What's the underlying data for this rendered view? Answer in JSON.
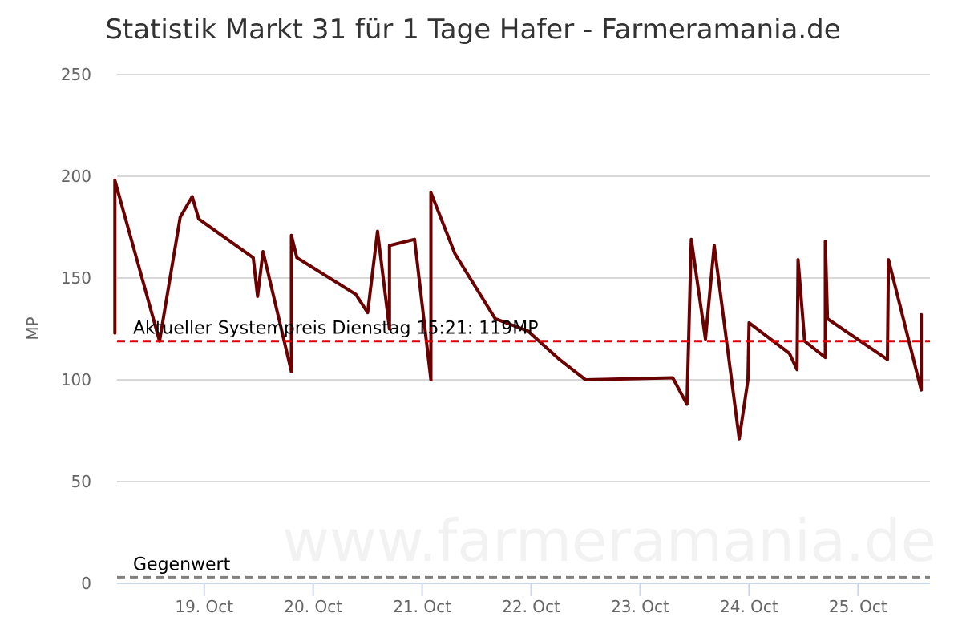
{
  "chart_data": {
    "type": "line",
    "title": "Statistik Markt 31 für 1 Tage Hafer - Farmeramania.de",
    "ylabel": "MP",
    "xlabel": "",
    "ylim": [
      0,
      250
    ],
    "yticks": [
      0,
      50,
      100,
      150,
      200,
      250
    ],
    "xlim": [
      18.2,
      25.66
    ],
    "xticks": [
      {
        "value": 19,
        "label": "19. Oct"
      },
      {
        "value": 20,
        "label": "20. Oct"
      },
      {
        "value": 21,
        "label": "21. Oct"
      },
      {
        "value": 22,
        "label": "22. Oct"
      },
      {
        "value": 23,
        "label": "23. Oct"
      },
      {
        "value": 24,
        "label": "24. Oct"
      },
      {
        "value": 25,
        "label": "25. Oct"
      }
    ],
    "grid": true,
    "line_color": "#6b0000",
    "series": [
      {
        "name": "",
        "points": [
          [
            18.18,
            123
          ],
          [
            18.18,
            198
          ],
          [
            18.59,
            119
          ],
          [
            18.78,
            180
          ],
          [
            18.89,
            190
          ],
          [
            18.95,
            179
          ],
          [
            19.45,
            160
          ],
          [
            19.49,
            141
          ],
          [
            19.54,
            163
          ],
          [
            19.8,
            104
          ],
          [
            19.8,
            171
          ],
          [
            19.85,
            160
          ],
          [
            20.39,
            142
          ],
          [
            20.5,
            133
          ],
          [
            20.59,
            173
          ],
          [
            20.7,
            125
          ],
          [
            20.7,
            166
          ],
          [
            20.93,
            169
          ],
          [
            21.08,
            100
          ],
          [
            21.08,
            192
          ],
          [
            21.3,
            162
          ],
          [
            21.67,
            130
          ],
          [
            21.97,
            124
          ],
          [
            22.26,
            110
          ],
          [
            22.5,
            100
          ],
          [
            23.3,
            101
          ],
          [
            23.43,
            88
          ],
          [
            23.47,
            169
          ],
          [
            23.6,
            120
          ],
          [
            23.68,
            166
          ],
          [
            23.91,
            71
          ],
          [
            23.99,
            100
          ],
          [
            24.0,
            128
          ],
          [
            24.37,
            113
          ],
          [
            24.44,
            105
          ],
          [
            24.45,
            159
          ],
          [
            24.51,
            119
          ],
          [
            24.7,
            111
          ],
          [
            24.7,
            168
          ],
          [
            24.72,
            130
          ],
          [
            25.27,
            110
          ],
          [
            25.28,
            159
          ],
          [
            25.58,
            95
          ],
          [
            25.58,
            132
          ]
        ]
      }
    ],
    "plot_lines": [
      {
        "value": 119,
        "label": "Aktueller Systempreis Dienstag 15:21: 119MP",
        "color": "#e00000",
        "dash": true
      },
      {
        "value": 3,
        "label": "Gegenwert",
        "color": "#808080",
        "dash": true
      }
    ],
    "watermark": "www.farmeramania.de"
  }
}
